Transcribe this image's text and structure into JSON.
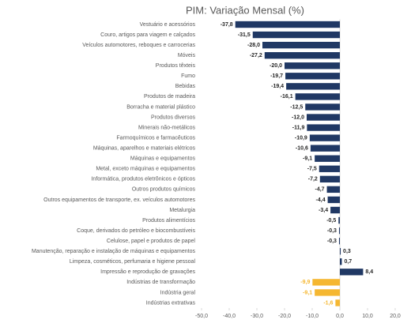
{
  "chart_data": {
    "type": "hbar",
    "title": "PIM: Variação Mensal (%)",
    "categories": [
      "Vestuário e acessórios",
      "Couro, artigos para viagem e calçados",
      "Veículos automotores, reboques e carrocerias",
      "Móveis",
      "Produtos têxteis",
      "Fumo",
      "Bebidas",
      "Produtos de madeira",
      "Borracha e material plástico",
      "Produtos diversos",
      "Minerais não-metálicos",
      "Farmoquímicos e farmacêuticos",
      "Máquinas, aparelhos e materiais elétricos",
      "Máquinas e equipamentos",
      "Metal, exceto máquinas e equipamentos",
      "Informática, produtos eletrônicos e ópticos",
      "Outros produtos químicos",
      "Outros equipamentos de transporte, ex. veículos automotores",
      "Metalurgia",
      "Produtos alimentícios",
      "Coque, derivados do petróleo e biocombustíveis",
      "Celulose, papel e produtos de papel",
      "Manutenção, reparação e instalação de máquinas e equipamentos",
      "Limpeza, cosméticos, perfumaria e higiene pessoal",
      "Impressão e reprodução de gravações",
      "Indústrias de transformação",
      "Indústria geral",
      "Indústrias extrativas"
    ],
    "values": [
      -37.8,
      -31.5,
      -28.0,
      -27.2,
      -20.0,
      -19.7,
      -19.4,
      -16.1,
      -12.5,
      -12.0,
      -11.9,
      -10.9,
      -10.6,
      -9.1,
      -7.5,
      -7.2,
      -4.7,
      -4.4,
      -3.4,
      -0.5,
      -0.3,
      -0.3,
      0.3,
      0.7,
      8.4,
      -9.9,
      -9.1,
      -1.6
    ],
    "value_labels": [
      "-37,8",
      "-31,5",
      "-28,0",
      "-27,2",
      "-20,0",
      "-19,7",
      "-19,4",
      "-16,1",
      "-12,5",
      "-12,0",
      "-11,9",
      "-10,9",
      "-10,6",
      "-9,1",
      "-7,5",
      "-7,2",
      "-4,7",
      "-4,4",
      "-3,4",
      "-0,5",
      "-0,3",
      "-0,3",
      "0,3",
      "0,7",
      "8,4",
      "-9,9",
      "-9,1",
      "-1,6"
    ],
    "colors": [
      "#203864",
      "#203864",
      "#203864",
      "#203864",
      "#203864",
      "#203864",
      "#203864",
      "#203864",
      "#203864",
      "#203864",
      "#203864",
      "#203864",
      "#203864",
      "#203864",
      "#203864",
      "#203864",
      "#203864",
      "#203864",
      "#203864",
      "#203864",
      "#203864",
      "#203864",
      "#203864",
      "#203864",
      "#203864",
      "#f5b731",
      "#f5b731",
      "#f5b731"
    ],
    "xlim": [
      -50,
      20
    ],
    "xticks": [
      {
        "value": -50,
        "label": "-50,0"
      },
      {
        "value": -40,
        "label": "-40,0"
      },
      {
        "value": -30,
        "label": "-30,0"
      },
      {
        "value": -20,
        "label": "-20,0"
      },
      {
        "value": -10,
        "label": "-10,0"
      },
      {
        "value": 0,
        "label": "0,0"
      },
      {
        "value": 10,
        "label": "10,0"
      },
      {
        "value": 20,
        "label": "20,0"
      }
    ],
    "grid": false
  }
}
